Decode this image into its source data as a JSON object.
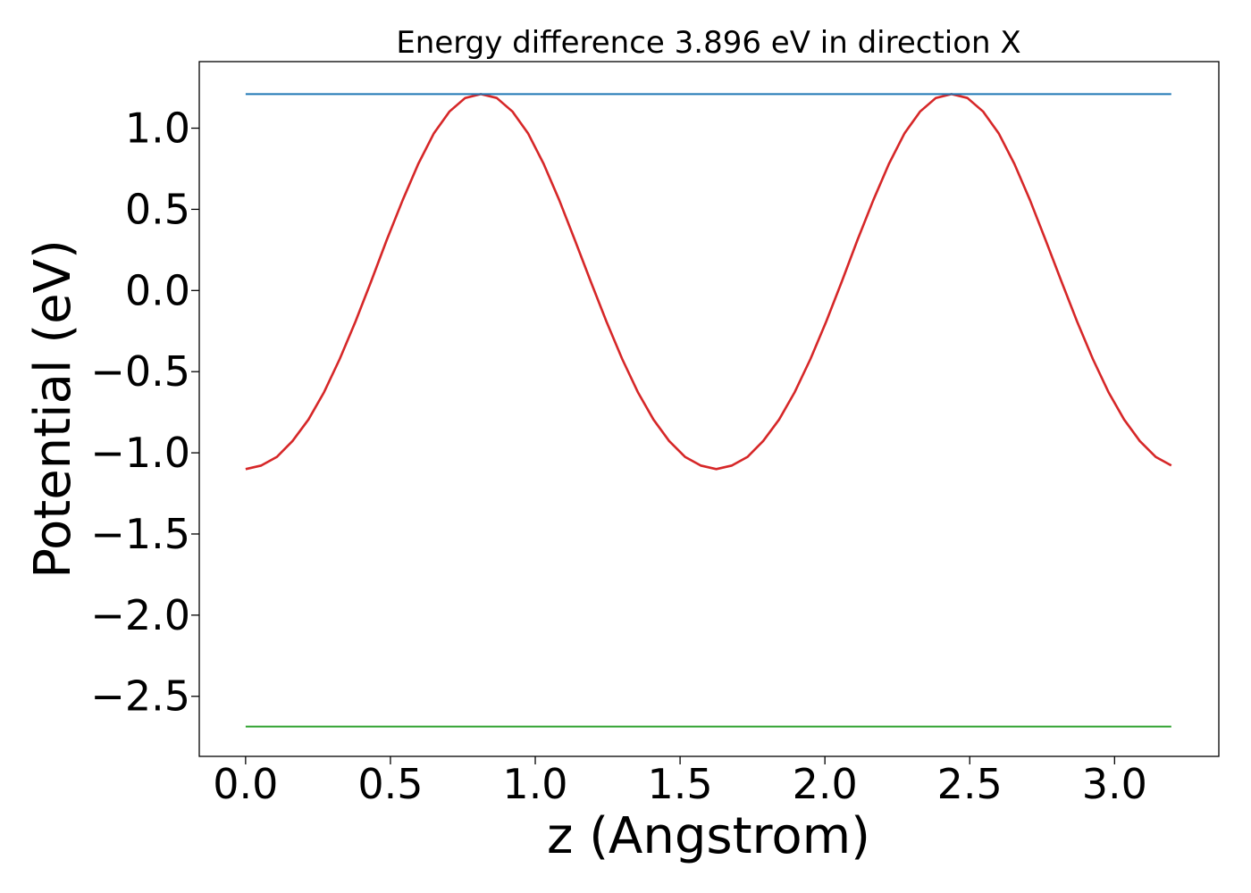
{
  "chart_data": {
    "type": "line",
    "title": "Energy difference 3.896 eV in direction X",
    "xlabel": "z (Angstrom)",
    "ylabel": "Potential (eV)",
    "xlim": [
      -0.16,
      3.36
    ],
    "ylim": [
      -2.87,
      1.41
    ],
    "xticks": [
      0.0,
      0.5,
      1.0,
      1.5,
      2.0,
      2.5,
      3.0
    ],
    "xtick_labels": [
      "0.0",
      "0.5",
      "1.0",
      "1.5",
      "2.0",
      "2.5",
      "3.0"
    ],
    "yticks": [
      1.0,
      0.5,
      0.0,
      -0.5,
      -1.0,
      -1.5,
      -2.0,
      -2.5
    ],
    "ytick_labels": [
      "1.0",
      "0.5",
      "0.0",
      "−0.5",
      "−1.0",
      "−1.5",
      "−2.0",
      "−2.5"
    ],
    "grid": false,
    "series": [
      {
        "color": "#d62728",
        "x": [
          0.0,
          0.054,
          0.108,
          0.162,
          0.217,
          0.271,
          0.325,
          0.379,
          0.433,
          0.487,
          0.542,
          0.596,
          0.65,
          0.704,
          0.758,
          0.812,
          0.867,
          0.921,
          0.975,
          1.029,
          1.083,
          1.137,
          1.192,
          1.246,
          1.3,
          1.354,
          1.408,
          1.462,
          1.517,
          1.571,
          1.625,
          1.679,
          1.733,
          1.787,
          1.842,
          1.896,
          1.95,
          2.004,
          2.058,
          2.112,
          2.167,
          2.221,
          2.275,
          2.329,
          2.383,
          2.437,
          2.492,
          2.546,
          2.6,
          2.654,
          2.708,
          2.762,
          2.817,
          2.871,
          2.925,
          2.979,
          3.033,
          3.087,
          3.142,
          3.196
        ],
        "y": [
          -1.1,
          -1.078,
          -1.025,
          -0.927,
          -0.795,
          -0.626,
          -0.422,
          -0.193,
          0.054,
          0.31,
          0.556,
          0.78,
          0.969,
          1.103,
          1.186,
          1.21,
          1.186,
          1.103,
          0.969,
          0.78,
          0.556,
          0.31,
          0.054,
          -0.193,
          -0.422,
          -0.626,
          -0.795,
          -0.927,
          -1.025,
          -1.078,
          -1.1,
          -1.078,
          -1.025,
          -0.927,
          -0.795,
          -0.626,
          -0.422,
          -0.193,
          0.054,
          0.31,
          0.556,
          0.78,
          0.969,
          1.103,
          1.186,
          1.21,
          1.186,
          1.103,
          0.969,
          0.78,
          0.556,
          0.31,
          0.054,
          -0.193,
          -0.422,
          -0.626,
          -0.795,
          -0.927,
          -1.025,
          -1.078
        ]
      },
      {
        "color": "#1f77b4",
        "x": [
          0.0,
          3.196
        ],
        "y": [
          1.21,
          1.21
        ]
      },
      {
        "color": "#2ca02c",
        "x": [
          0.0,
          3.196
        ],
        "y": [
          -2.686,
          -2.686
        ]
      }
    ]
  }
}
